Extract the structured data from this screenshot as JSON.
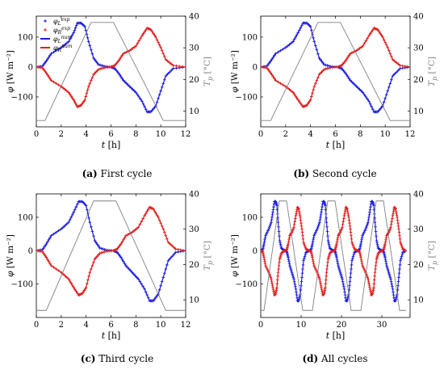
{
  "chart_data": [
    {
      "type": "line",
      "caption_label": "(a)",
      "caption_text": "First cycle",
      "xlabel": "t [h]",
      "ylabel": "φ [W m⁻²]",
      "y2label": "T_p [°C]",
      "xlim": [
        0,
        12
      ],
      "ylim": [
        -200,
        170
      ],
      "y2lim": [
        5,
        40
      ],
      "xticks": [
        0,
        2,
        4,
        6,
        8,
        10,
        12
      ],
      "yticks": [
        -100,
        0,
        100
      ],
      "y2ticks": [
        10,
        20,
        30,
        40
      ],
      "legend_position": "top-left",
      "legend": [
        {
          "label": "φ_L^exp",
          "color": "#1f1fe0",
          "style": "marker"
        },
        {
          "label": "φ_R^exp",
          "color": "#e01f1f",
          "style": "marker"
        },
        {
          "label": "φ_L^num",
          "color": "#1f1fe0",
          "style": "line"
        },
        {
          "label": "φ_R^num",
          "color": "#e01f1f",
          "style": "line"
        }
      ],
      "series": [
        {
          "name": "φ_L",
          "color": "#1f1fe0",
          "x": [
            0,
            0.5,
            0.8,
            1.2,
            2,
            2.6,
            3,
            3.3,
            3.6,
            3.9,
            4.2,
            4.6,
            5,
            5.5,
            6,
            6.3,
            6.6,
            7,
            7.5,
            8,
            8.5,
            8.9,
            9.2,
            9.6,
            10,
            10.4,
            11,
            12
          ],
          "y": [
            0,
            3,
            20,
            45,
            65,
            85,
            115,
            147,
            147,
            135,
            85,
            30,
            8,
            2,
            0,
            -5,
            -20,
            -45,
            -65,
            -85,
            -115,
            -150,
            -150,
            -130,
            -80,
            -30,
            -5,
            0
          ]
        },
        {
          "name": "φ_R",
          "color": "#e01f1f",
          "x": [
            0,
            0.5,
            0.8,
            1.2,
            2,
            2.6,
            3,
            3.3,
            3.6,
            3.9,
            4.2,
            4.6,
            5,
            5.5,
            6,
            6.3,
            6.6,
            7,
            7.5,
            8,
            8.5,
            8.9,
            9.2,
            9.6,
            10,
            10.4,
            11,
            12
          ],
          "y": [
            0,
            -3,
            -20,
            -45,
            -65,
            -85,
            -110,
            -133,
            -128,
            -110,
            -65,
            -25,
            -8,
            -2,
            0,
            5,
            20,
            45,
            55,
            70,
            105,
            130,
            125,
            100,
            65,
            25,
            5,
            0
          ]
        },
        {
          "name": "T_p",
          "axis": "y2",
          "color": "#808080",
          "x": [
            0,
            0.7,
            4.4,
            6.2,
            10.2,
            12
          ],
          "y": [
            7,
            7,
            38,
            38,
            7,
            7
          ]
        }
      ]
    },
    {
      "type": "line",
      "caption_label": "(b)",
      "caption_text": "Second cycle",
      "xlabel": "t [h]",
      "ylabel": "φ [W m⁻²]",
      "y2label": "T_p [°C]",
      "xlim": [
        0,
        12
      ],
      "ylim": [
        -200,
        170
      ],
      "y2lim": [
        5,
        40
      ],
      "xticks": [
        0,
        2,
        4,
        6,
        8,
        10,
        12
      ],
      "yticks": [
        -100,
        0,
        100
      ],
      "y2ticks": [
        10,
        20,
        30,
        40
      ],
      "series": [
        {
          "name": "φ_L",
          "color": "#1f1fe0",
          "x": [
            0,
            0.5,
            0.8,
            1.2,
            2,
            2.6,
            3,
            3.4,
            3.7,
            4,
            4.3,
            4.7,
            5.1,
            5.6,
            6.2,
            6.5,
            6.8,
            7.2,
            7.7,
            8.2,
            8.7,
            9.1,
            9.4,
            9.8,
            10.2,
            10.6,
            11.2,
            12
          ],
          "y": [
            0,
            3,
            20,
            45,
            65,
            85,
            115,
            147,
            147,
            135,
            85,
            30,
            8,
            2,
            0,
            -5,
            -20,
            -45,
            -65,
            -85,
            -115,
            -150,
            -150,
            -130,
            -80,
            -30,
            -5,
            0
          ]
        },
        {
          "name": "φ_R",
          "color": "#e01f1f",
          "x": [
            0,
            0.5,
            0.8,
            1.2,
            2,
            2.6,
            3,
            3.4,
            3.7,
            4,
            4.3,
            4.7,
            5.1,
            5.6,
            6.2,
            6.5,
            6.8,
            7.2,
            7.7,
            8.2,
            8.7,
            9.1,
            9.4,
            9.8,
            10.2,
            10.6,
            11.2,
            12
          ],
          "y": [
            0,
            -3,
            -20,
            -45,
            -65,
            -85,
            -110,
            -133,
            -128,
            -110,
            -65,
            -25,
            -8,
            -2,
            0,
            5,
            20,
            45,
            55,
            70,
            105,
            130,
            125,
            100,
            65,
            25,
            5,
            0
          ]
        },
        {
          "name": "T_p",
          "axis": "y2",
          "color": "#808080",
          "x": [
            0,
            0.8,
            4.6,
            6.4,
            10.4,
            12
          ],
          "y": [
            7,
            7,
            38,
            38,
            7,
            7
          ]
        }
      ]
    },
    {
      "type": "line",
      "caption_label": "(c)",
      "caption_text": "Third cycle",
      "xlabel": "t [h]",
      "ylabel": "φ [W m⁻²]",
      "y2label": "T_p [°C]",
      "xlim": [
        0,
        12
      ],
      "ylim": [
        -200,
        170
      ],
      "y2lim": [
        5,
        40
      ],
      "xticks": [
        0,
        2,
        4,
        6,
        8,
        10,
        12
      ],
      "yticks": [
        -100,
        0,
        100
      ],
      "y2ticks": [
        10,
        20,
        30,
        40
      ],
      "series": [
        {
          "name": "φ_L",
          "color": "#1f1fe0",
          "x": [
            0,
            0.5,
            0.8,
            1.2,
            2,
            2.6,
            3,
            3.4,
            3.7,
            4,
            4.3,
            4.7,
            5.1,
            5.6,
            6.2,
            6.5,
            6.8,
            7.2,
            7.7,
            8.2,
            8.7,
            9.1,
            9.4,
            9.8,
            10.2,
            10.6,
            11.2,
            12
          ],
          "y": [
            0,
            3,
            20,
            45,
            65,
            85,
            115,
            147,
            147,
            135,
            85,
            30,
            8,
            2,
            0,
            -5,
            -20,
            -45,
            -65,
            -85,
            -115,
            -150,
            -150,
            -130,
            -80,
            -30,
            -5,
            0
          ]
        },
        {
          "name": "φ_R",
          "color": "#e01f1f",
          "x": [
            0,
            0.5,
            0.8,
            1.2,
            2,
            2.6,
            3,
            3.4,
            3.7,
            4,
            4.3,
            4.7,
            5.1,
            5.6,
            6.2,
            6.5,
            6.8,
            7.2,
            7.7,
            8.2,
            8.7,
            9.1,
            9.4,
            9.8,
            10.2,
            10.6,
            11.2,
            12
          ],
          "y": [
            0,
            -3,
            -20,
            -45,
            -65,
            -85,
            -110,
            -133,
            -128,
            -110,
            -65,
            -25,
            -8,
            -2,
            0,
            5,
            20,
            45,
            55,
            70,
            105,
            130,
            125,
            100,
            65,
            25,
            5,
            0
          ]
        },
        {
          "name": "T_p",
          "axis": "y2",
          "color": "#808080",
          "x": [
            0,
            0.8,
            4.6,
            6.4,
            10.4,
            12
          ],
          "y": [
            7,
            7,
            38,
            38,
            7,
            7
          ]
        }
      ]
    },
    {
      "type": "line",
      "caption_label": "(d)",
      "caption_text": "All cycles",
      "xlabel": "t [h]",
      "ylabel": "φ [W m⁻²]",
      "y2label": "T_p [°C]",
      "xlim": [
        0,
        37
      ],
      "ylim": [
        -200,
        170
      ],
      "y2lim": [
        5,
        40
      ],
      "xticks": [
        0,
        10,
        20,
        30
      ],
      "yticks": [
        -100,
        0,
        100
      ],
      "y2ticks": [
        10,
        20,
        30,
        40
      ],
      "cycle_period": 12,
      "cycles": 3,
      "series": [
        {
          "name": "φ_L",
          "color": "#1f1fe0",
          "x": [
            0,
            0.5,
            0.8,
            1.2,
            2,
            2.6,
            3,
            3.4,
            3.7,
            4,
            4.3,
            4.7,
            5.1,
            5.6,
            6.2,
            6.5,
            6.8,
            7.2,
            7.7,
            8.2,
            8.7,
            9.1,
            9.4,
            9.8,
            10.2,
            10.6,
            11.2,
            12
          ],
          "y": [
            0,
            3,
            20,
            45,
            65,
            85,
            115,
            147,
            147,
            135,
            85,
            30,
            8,
            2,
            0,
            -5,
            -20,
            -45,
            -65,
            -85,
            -115,
            -150,
            -150,
            -130,
            -80,
            -30,
            -5,
            0
          ]
        },
        {
          "name": "φ_R",
          "color": "#e01f1f",
          "x": [
            0,
            0.5,
            0.8,
            1.2,
            2,
            2.6,
            3,
            3.4,
            3.7,
            4,
            4.3,
            4.7,
            5.1,
            5.6,
            6.2,
            6.5,
            6.8,
            7.2,
            7.7,
            8.2,
            8.7,
            9.1,
            9.4,
            9.8,
            10.2,
            10.6,
            11.2,
            12
          ],
          "y": [
            0,
            -3,
            -20,
            -45,
            -65,
            -85,
            -110,
            -133,
            -128,
            -110,
            -65,
            -25,
            -8,
            -2,
            0,
            5,
            20,
            45,
            55,
            70,
            105,
            130,
            125,
            100,
            65,
            25,
            5,
            0
          ]
        },
        {
          "name": "T_p",
          "axis": "y2",
          "color": "#808080",
          "x": [
            0,
            0.8,
            4.6,
            6.4,
            10.4,
            12
          ],
          "y": [
            7,
            7,
            38,
            38,
            7,
            7
          ]
        }
      ]
    }
  ]
}
